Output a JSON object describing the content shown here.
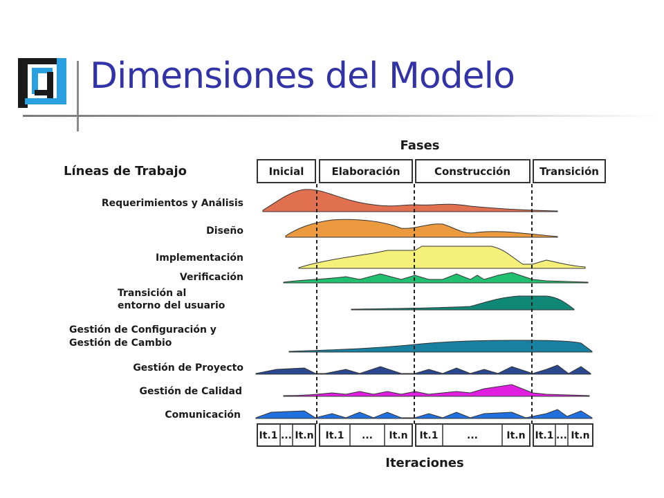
{
  "slide": {
    "title": "Dimensiones del Modelo"
  },
  "diagram": {
    "phases_title": "Fases",
    "workflows_title": "Líneas de Trabajo",
    "iterations_title": "Iteraciones",
    "phases": [
      "Inicial",
      "Elaboración",
      "Construcción",
      "Transición"
    ],
    "workflows": [
      {
        "lines": [
          "Requerimientos y Análisis"
        ],
        "color": "#e07050"
      },
      {
        "lines": [
          "Diseño"
        ],
        "color": "#ec9a40"
      },
      {
        "lines": [
          "Implementación"
        ],
        "color": "#f4f07a"
      },
      {
        "lines": [
          "Verificación"
        ],
        "color": "#20c070"
      },
      {
        "lines": [
          "Transición al",
          "entorno del usuario"
        ],
        "color": "#108878"
      },
      {
        "lines": [
          "Gestión de Configuración y",
          "Gestión de Cambio"
        ],
        "color": "#1880a0"
      },
      {
        "lines": [
          "Gestión de Proyecto"
        ],
        "color": "#2a4890"
      },
      {
        "lines": [
          "Gestión de Calidad"
        ],
        "color": "#e020e0"
      },
      {
        "lines": [
          "Comunicación"
        ],
        "color": "#2070e0"
      }
    ],
    "iteration_labels": [
      "It.1",
      "...",
      "It.n",
      "It.1",
      "...",
      "It.n",
      "It.1",
      "...",
      "It.n",
      "It.1",
      "...",
      "It.n"
    ]
  }
}
